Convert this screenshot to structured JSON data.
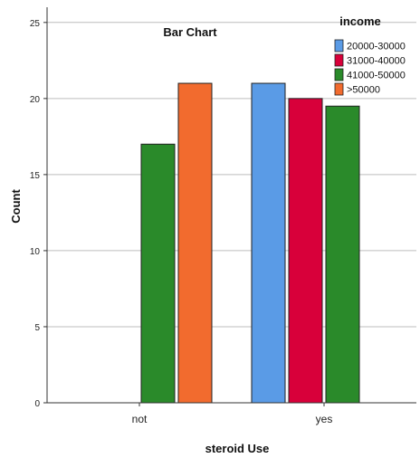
{
  "chart_data": {
    "type": "bar",
    "title": "Bar Chart",
    "xlabel": "steroid Use",
    "ylabel": "Count",
    "categories": [
      "not",
      "yes"
    ],
    "ylim": [
      0,
      26
    ],
    "yticks": [
      0,
      5,
      10,
      15,
      20,
      25
    ],
    "grid": true,
    "legend_title": "income",
    "legend_position": "top-right",
    "series": [
      {
        "name": "20000-30000",
        "color": "#5A9BE6",
        "values": [
          0,
          21
        ]
      },
      {
        "name": "31000-40000",
        "color": "#D8003A",
        "values": [
          0,
          20
        ]
      },
      {
        "name": "41000-50000",
        "color": "#2A8A2A",
        "values": [
          17,
          19.5
        ]
      },
      {
        "name": ">50000",
        "color": "#F26B2E",
        "values": [
          21,
          0
        ]
      }
    ]
  }
}
